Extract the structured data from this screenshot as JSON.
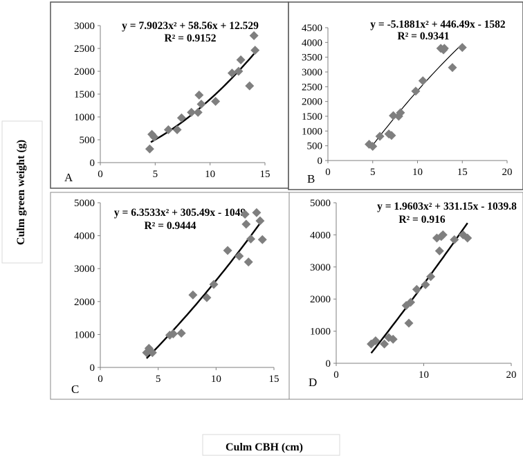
{
  "figure": {
    "ylabel": "Culm green weight (g)",
    "xlabel": "Culm CBH (cm)"
  },
  "chart_data": [
    {
      "type": "scatter",
      "panel": "A",
      "equation": "y = 7.9023x² + 58.56x + 12.529",
      "r2": "R² = 0.9152",
      "fit": {
        "a": 7.9023,
        "b": 58.56,
        "c": 12.529,
        "x_range": [
          4.6,
          14.0
        ]
      },
      "xlim": [
        0,
        15
      ],
      "ylim": [
        0,
        3000
      ],
      "xticks": [
        0,
        5,
        10,
        15
      ],
      "yticks": [
        0,
        500,
        1000,
        1500,
        2000,
        2500,
        3000
      ],
      "x": [
        4.5,
        4.7,
        4.9,
        6.2,
        7.0,
        7.4,
        8.3,
        8.9,
        9.0,
        9.2,
        10.5,
        12.0,
        12.6,
        12.8,
        13.6,
        14.0,
        14.1
      ],
      "y": [
        300,
        620,
        560,
        720,
        720,
        980,
        1100,
        1100,
        1480,
        1280,
        1340,
        1960,
        2000,
        2250,
        1680,
        2780,
        2460
      ],
      "color": "#7f7f7f"
    },
    {
      "type": "scatter",
      "panel": "B",
      "equation": "y = -5.1881x² + 446.49x - 1582",
      "r2": "R² = 0.9341",
      "fit": {
        "a": -5.1881,
        "b": 446.49,
        "c": -1582,
        "x_range": [
          4.8,
          15.0
        ]
      },
      "xlim": [
        0,
        20
      ],
      "ylim": [
        0,
        4500
      ],
      "xticks": [
        0,
        5,
        10,
        15,
        20
      ],
      "yticks": [
        0,
        500,
        1000,
        1500,
        2000,
        2500,
        3000,
        3500,
        4000,
        4500
      ],
      "x": [
        4.6,
        5.0,
        5.8,
        6.8,
        7.1,
        7.3,
        7.9,
        8.1,
        9.8,
        10.6,
        12.6,
        12.9,
        13.0,
        13.9,
        15.0
      ],
      "y": [
        550,
        480,
        820,
        900,
        850,
        1520,
        1500,
        1620,
        2350,
        2700,
        3800,
        3750,
        3800,
        3150,
        3830
      ],
      "color": "#7f7f7f"
    },
    {
      "type": "scatter",
      "panel": "C",
      "equation": "y = 6.3533x² + 305.49x - 1049",
      "r2": "R² = 0.9444",
      "fit": {
        "a": 6.3533,
        "b": 305.49,
        "c": -1049,
        "x_range": [
          4.0,
          14.0
        ]
      },
      "xlim": [
        0,
        15
      ],
      "ylim": [
        0,
        5000
      ],
      "xticks": [
        0,
        5,
        10,
        15
      ],
      "yticks": [
        0,
        1000,
        2000,
        3000,
        4000,
        5000
      ],
      "x": [
        4.0,
        4.2,
        4.5,
        6.0,
        6.3,
        7.0,
        8.0,
        9.2,
        9.8,
        11.0,
        12.0,
        12.5,
        12.6,
        12.8,
        13.0,
        13.5,
        13.8,
        14.0
      ],
      "y": [
        450,
        580,
        450,
        980,
        1020,
        1040,
        2200,
        2120,
        2520,
        3550,
        3380,
        4650,
        4350,
        3200,
        3900,
        4700,
        4450,
        3880
      ],
      "color": "#7f7f7f"
    },
    {
      "type": "scatter",
      "panel": "D",
      "equation": "y = 1.9603x² + 331.15x - 1039.8",
      "r2": "R² = 0.916",
      "fit": {
        "a": 1.9603,
        "b": 331.15,
        "c": -1039.8,
        "x_range": [
          4.0,
          15.0
        ]
      },
      "xlim": [
        0,
        20
      ],
      "ylim": [
        0,
        5000
      ],
      "xticks": [
        0,
        10,
        20
      ],
      "yticks": [
        0,
        1000,
        2000,
        3000,
        4000,
        5000
      ],
      "x": [
        4.0,
        4.5,
        5.5,
        6.0,
        6.5,
        8.0,
        8.3,
        8.5,
        9.2,
        10.2,
        10.8,
        11.5,
        11.8,
        12.0,
        12.2,
        13.5,
        14.5,
        15.0
      ],
      "y": [
        600,
        700,
        600,
        800,
        750,
        1800,
        1250,
        1900,
        2300,
        2450,
        2700,
        3900,
        3500,
        3950,
        4000,
        3850,
        4000,
        3900
      ],
      "color": "#7f7f7f"
    }
  ]
}
